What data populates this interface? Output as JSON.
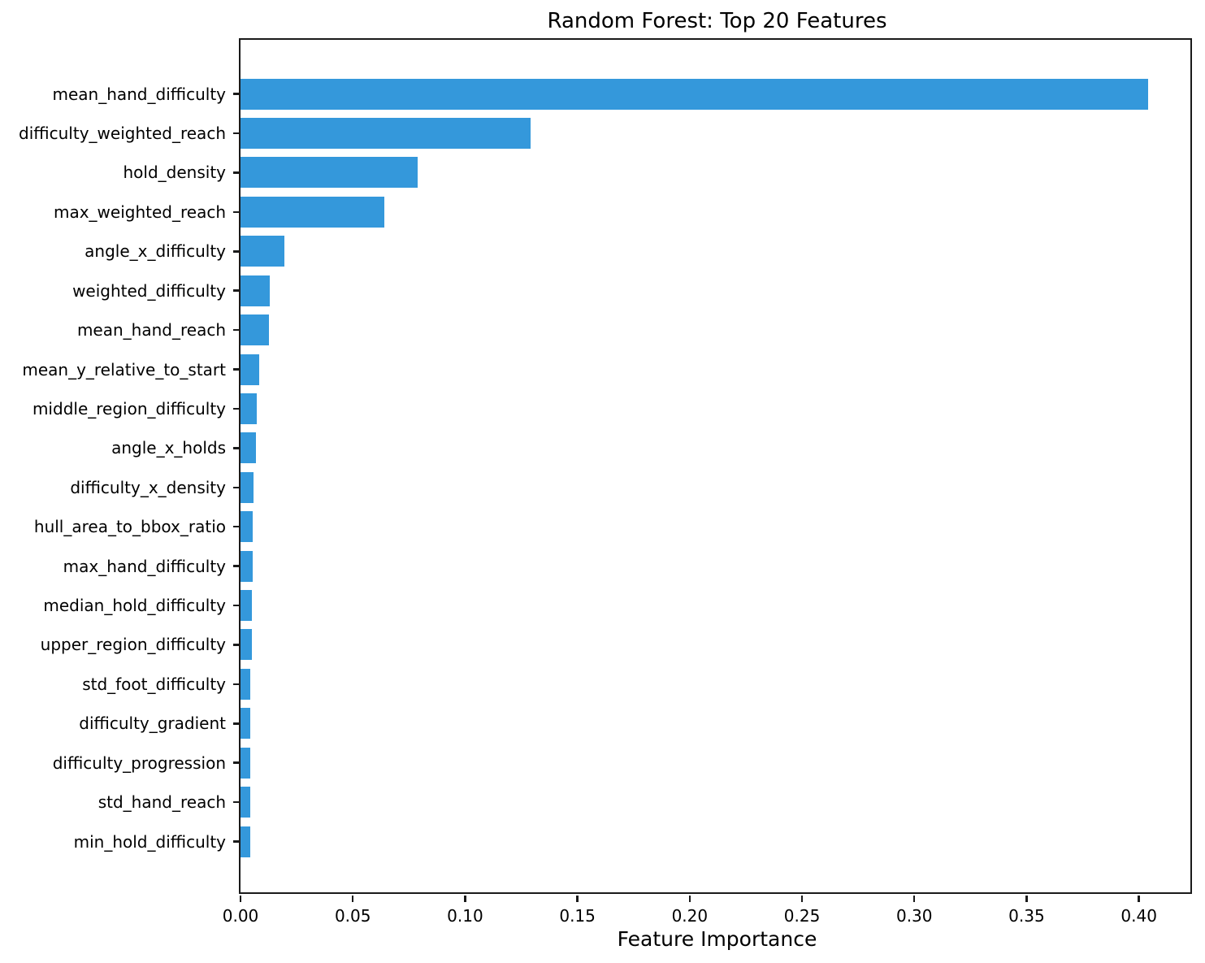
{
  "chart_data": {
    "type": "bar",
    "orientation": "horizontal",
    "title": "Random Forest: Top 20 Features",
    "xlabel": "Feature Importance",
    "ylabel": "",
    "categories": [
      "mean_hand_difficulty",
      "difficulty_weighted_reach",
      "hold_density",
      "max_weighted_reach",
      "angle_x_difficulty",
      "weighted_difficulty",
      "mean_hand_reach",
      "mean_y_relative_to_start",
      "middle_region_difficulty",
      "angle_x_holds",
      "difficulty_x_density",
      "hull_area_to_bbox_ratio",
      "max_hand_difficulty",
      "median_hold_difficulty",
      "upper_region_difficulty",
      "std_foot_difficulty",
      "difficulty_gradient",
      "difficulty_progression",
      "std_hand_reach",
      "min_hold_difficulty"
    ],
    "values": [
      0.404,
      0.129,
      0.079,
      0.064,
      0.0196,
      0.0132,
      0.0125,
      0.0082,
      0.0072,
      0.0069,
      0.0058,
      0.0055,
      0.0054,
      0.0052,
      0.0049,
      0.0045,
      0.0044,
      0.0044,
      0.0043,
      0.0042
    ],
    "xlim": [
      0,
      0.424
    ],
    "xtick_labels": [
      "0.00",
      "0.05",
      "0.10",
      "0.15",
      "0.20",
      "0.25",
      "0.30",
      "0.35",
      "0.40"
    ],
    "bar_color": "#3498db",
    "axis_color": "#1a1a1a",
    "grid": false,
    "legend_position": "none"
  }
}
